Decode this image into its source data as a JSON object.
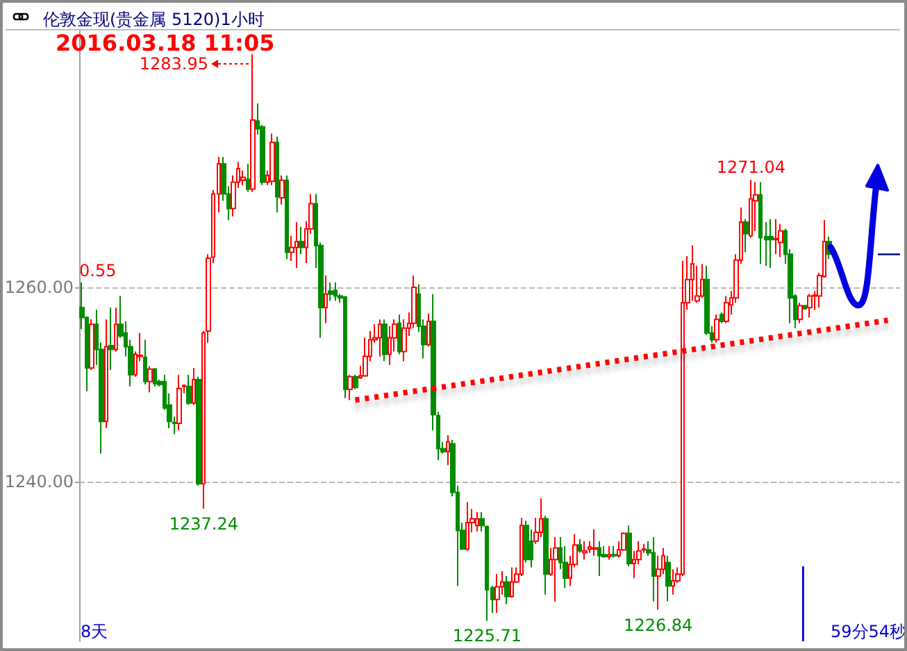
{
  "chart_data": {
    "type": "candlestick",
    "title": "伦敦金现(贵金属 5120)1小时",
    "subtitle": "2016.03.18 11:05",
    "categories": [
      null,
      null,
      null,
      null,
      null,
      null,
      null,
      null,
      null,
      null,
      null,
      null,
      null,
      null,
      null,
      null,
      null,
      null,
      null,
      null,
      null,
      null,
      null,
      null,
      null,
      null,
      null,
      null,
      null,
      null,
      null,
      null,
      null,
      null,
      null,
      null,
      null,
      null,
      null,
      null,
      null,
      null,
      null,
      null,
      null,
      null,
      null,
      null,
      null,
      null,
      null,
      null,
      null,
      null,
      null,
      null,
      null,
      null,
      null,
      null,
      null,
      null,
      null,
      null,
      null,
      null,
      null,
      null,
      null,
      null,
      null,
      null,
      null,
      null,
      null,
      null,
      null,
      null,
      null,
      null,
      null,
      null,
      null,
      null,
      null,
      null,
      null,
      null,
      null,
      null,
      null,
      null,
      null,
      null,
      null,
      null,
      null,
      null,
      null,
      null,
      null,
      null,
      null,
      null,
      null,
      null,
      null,
      null,
      null,
      null,
      null,
      null,
      null,
      null,
      null,
      null,
      null,
      null,
      null,
      null,
      null,
      null,
      null,
      null,
      null,
      null,
      null,
      null,
      null,
      null,
      null,
      null,
      null,
      null,
      null,
      null,
      null,
      null,
      null,
      null,
      null,
      null,
      null,
      null,
      null,
      null,
      null,
      null,
      null,
      null,
      null,
      null,
      null,
      null,
      null,
      null,
      null,
      null,
      null,
      null,
      null,
      null,
      null,
      null,
      null,
      null,
      null,
      null
    ],
    "colors": [
      "#008c00",
      "#008c00",
      "#ff0000",
      "#008c00",
      "#008c00",
      "#ff0000",
      "#008c00",
      "#ff0000",
      "#008c00",
      "#008c00",
      "#008c00",
      "#ff0000",
      "#ff0000",
      "#008c00",
      "#ff0000",
      "#008c00",
      "#008c00",
      "#008c00",
      "#008c00",
      "#008c00",
      "#ff0000",
      "#ff0000",
      "#008c00",
      "#ff0000",
      "#008c00",
      "#ff0000",
      "#ff0000",
      "#ff0000",
      "#ff0000",
      "#008c00",
      "#008c00",
      "#ff0000",
      "#ff0000",
      "#ff0000",
      "#008c00",
      "#ff0000",
      "#008c00",
      "#008c00",
      "#ff0000",
      "#ff0000",
      "#008c00",
      "#ff0000",
      "#008c00",
      "#ff0000",
      "#ff0000",
      "#008c00",
      "#ff0000",
      "#ff0000",
      "#008c00",
      "#008c00",
      "#ff0000",
      "#008c00",
      "#008c00",
      "#008c00",
      "#008c00",
      "#ff0000",
      "#008c00",
      "#ff0000",
      "#ff0000",
      "#ff0000",
      "#ff0000",
      "#ff0000",
      "#008c00",
      "#ff0000",
      "#ff0000",
      "#008c00",
      "#ff0000",
      "#ff0000",
      "#ff0000",
      "#008c00",
      "#008c00",
      "#ff0000",
      "#008c00",
      "#008c00",
      "#008c00",
      "#ff0000",
      "#008c00",
      "#008c00",
      "#008c00",
      "#ff0000",
      "#ff0000",
      "#ff0000",
      "#008c00",
      "#008c00",
      "#008c00",
      "#ff0000",
      "#ff0000",
      "#008c00",
      "#ff0000",
      "#ff0000",
      "#ff0000",
      "#008c00",
      "#008c00",
      "#ff0000",
      "#ff0000",
      "#008c00",
      "#ff0000",
      "#ff0000",
      "#008c00",
      "#008c00",
      "#ff0000",
      "#ff0000",
      "#008c00",
      "#ff0000",
      "#ff0000",
      "#ff0000",
      "#008c00",
      "#008c00",
      "#ff0000",
      "#008c00",
      "#ff0000",
      "#ff0000",
      "#008c00",
      "#ff0000",
      "#ff0000",
      "#ff0000",
      "#008c00",
      "#008c00",
      "#ff0000",
      "#ff0000",
      "#008c00",
      "#ff0000",
      "#ff0000",
      "#ff0000",
      "#ff0000",
      "#ff0000",
      "#ff0000",
      "#ff0000",
      "#008c00",
      "#008c00",
      "#ff0000",
      "#008c00",
      "#ff0000",
      "#ff0000",
      "#ff0000",
      "#ff0000",
      "#008c00",
      "#ff0000",
      "#ff0000",
      "#008c00",
      "#008c00",
      "#008c00",
      "#ff0000",
      "#ff0000",
      "#008c00",
      "#008c00",
      "#008c00",
      "#ff0000",
      "#008c00",
      "#ff0000",
      "#ff0000",
      "#ff0000",
      "#ff0000",
      "#008c00",
      null,
      null,
      null,
      null,
      null,
      null,
      null,
      null,
      null,
      null,
      null,
      null,
      null,
      null
    ],
    "ohlc": [
      [
        1257.9,
        1260.5,
        1255.7,
        1256.9
      ],
      [
        1256.9,
        1257.0,
        1249.3,
        1251.7
      ],
      [
        1251.7,
        1256.7,
        1251.5,
        1256.2
      ],
      [
        1256.2,
        1257.7,
        1252.0,
        1253.6
      ],
      [
        1253.6,
        1254.3,
        1242.9,
        1246.2
      ],
      [
        1246.2,
        1256.7,
        1245.5,
        1253.9
      ],
      [
        1254.0,
        1257.9,
        1251.5,
        1253.6
      ],
      [
        1253.6,
        1257.9,
        1253.4,
        1256.2
      ],
      [
        1256.2,
        1259.1,
        1254.8,
        1255.0
      ],
      [
        1255.3,
        1256.5,
        1252.9,
        1253.9
      ],
      [
        1253.9,
        1254.6,
        1249.8,
        1251.0
      ],
      [
        1251.0,
        1253.4,
        1250.8,
        1253.1
      ],
      [
        1252.9,
        1255.3,
        1252.4,
        1253.0
      ],
      [
        1252.8,
        1254.6,
        1250.0,
        1250.3
      ],
      [
        1250.3,
        1251.9,
        1249.2,
        1251.6
      ],
      [
        1251.6,
        1251.7,
        1249.8,
        1250.1
      ],
      [
        1250.3,
        1250.5,
        1249.8,
        1250.0
      ],
      [
        1250.3,
        1251.0,
        1247.4,
        1247.6
      ],
      [
        1247.9,
        1249.1,
        1245.5,
        1246.2
      ],
      [
        1246.1,
        1246.7,
        1244.9,
        1246.0
      ],
      [
        1246.0,
        1251.0,
        1245.3,
        1249.6
      ],
      [
        1249.8,
        1250.0,
        1249.1,
        1249.9
      ],
      [
        1249.8,
        1251.0,
        1247.9,
        1248.1
      ],
      [
        1248.1,
        1251.7,
        1247.9,
        1250.5
      ],
      [
        1250.5,
        1250.8,
        1239.6,
        1239.8
      ],
      [
        1239.8,
        1255.5,
        1237.24,
        1255.3
      ],
      [
        1255.5,
        1263.4,
        1254.3,
        1263.0
      ],
      [
        1263.1,
        1270.0,
        1262.5,
        1269.6
      ],
      [
        1269.6,
        1273.4,
        1267.7,
        1272.7
      ],
      [
        1272.7,
        1273.4,
        1268.9,
        1269.6
      ],
      [
        1269.6,
        1270.4,
        1266.9,
        1268.1
      ],
      [
        1268.1,
        1271.5,
        1267.3,
        1270.8
      ],
      [
        1270.8,
        1272.9,
        1270.2,
        1272.2
      ],
      [
        1271.0,
        1272.0,
        1270.5,
        1271.3
      ],
      [
        1271.1,
        1272.7,
        1269.8,
        1270.1
      ],
      [
        1270.1,
        1283.95,
        1269.8,
        1277.2
      ],
      [
        1277.1,
        1278.9,
        1275.7,
        1276.3
      ],
      [
        1276.5,
        1276.7,
        1270.5,
        1270.8
      ],
      [
        1270.8,
        1272.0,
        1270.5,
        1271.5
      ],
      [
        1270.9,
        1275.8,
        1270.5,
        1274.9
      ],
      [
        1274.9,
        1275.5,
        1267.7,
        1269.3
      ],
      [
        1269.2,
        1271.5,
        1268.5,
        1271.0
      ],
      [
        1271.0,
        1271.5,
        1262.9,
        1263.6
      ],
      [
        1263.6,
        1265.3,
        1262.7,
        1264.1
      ],
      [
        1264.1,
        1266.7,
        1262.0,
        1264.7
      ],
      [
        1264.7,
        1266.2,
        1263.4,
        1264.1
      ],
      [
        1264.1,
        1266.8,
        1262.5,
        1266.0
      ],
      [
        1266.0,
        1269.6,
        1265.5,
        1268.6
      ],
      [
        1268.6,
        1269.6,
        1262.0,
        1264.3
      ],
      [
        1264.3,
        1264.6,
        1254.8,
        1257.9
      ],
      [
        1257.9,
        1261.2,
        1256.3,
        1259.3
      ],
      [
        1259.6,
        1260.5,
        1258.6,
        1259.3
      ],
      [
        1259.7,
        1260.5,
        1258.6,
        1259.1
      ],
      [
        1259.1,
        1259.3,
        1258.4,
        1258.9
      ],
      [
        1259.0,
        1259.1,
        1248.6,
        1249.5
      ],
      [
        1249.5,
        1251.0,
        1248.4,
        1250.8
      ],
      [
        1250.8,
        1251.0,
        1249.5,
        1249.7
      ],
      [
        1250.7,
        1251.9,
        1250.6,
        1250.9
      ],
      [
        1250.9,
        1254.8,
        1250.8,
        1252.9
      ],
      [
        1252.9,
        1255.5,
        1252.4,
        1254.6
      ],
      [
        1254.6,
        1256.2,
        1254.3,
        1254.8
      ],
      [
        1254.8,
        1256.7,
        1252.9,
        1256.2
      ],
      [
        1256.2,
        1256.7,
        1252.4,
        1253.1
      ],
      [
        1253.1,
        1256.0,
        1252.0,
        1254.8
      ],
      [
        1254.8,
        1256.7,
        1253.4,
        1256.2
      ],
      [
        1256.3,
        1257.2,
        1253.1,
        1253.4
      ],
      [
        1253.4,
        1256.7,
        1252.4,
        1255.8
      ],
      [
        1255.8,
        1257.4,
        1255.0,
        1256.3
      ],
      [
        1256.3,
        1261.2,
        1255.8,
        1260.0
      ],
      [
        1259.3,
        1260.3,
        1255.4,
        1256.0
      ],
      [
        1256.0,
        1256.7,
        1252.7,
        1254.1
      ],
      [
        1254.1,
        1257.3,
        1253.9,
        1256.5
      ],
      [
        1256.5,
        1259.3,
        1245.3,
        1246.9
      ],
      [
        1246.8,
        1247.2,
        1242.2,
        1243.4
      ],
      [
        1243.4,
        1244.1,
        1242.9,
        1243.1
      ],
      [
        1243.1,
        1244.8,
        1241.7,
        1244.1
      ],
      [
        1243.9,
        1244.3,
        1238.5,
        1238.9
      ],
      [
        1238.9,
        1239.6,
        1229.3,
        1235.0
      ],
      [
        1235.0,
        1235.8,
        1233.0,
        1233.1
      ],
      [
        1233.1,
        1237.9,
        1232.9,
        1235.8
      ],
      [
        1235.8,
        1237.2,
        1234.8,
        1236.2
      ],
      [
        1235.5,
        1236.9,
        1234.9,
        1236.2
      ],
      [
        1236.2,
        1236.9,
        1234.9,
        1235.5
      ],
      [
        1235.4,
        1235.5,
        1225.71,
        1228.9
      ],
      [
        1229.1,
        1229.3,
        1226.5,
        1227.9
      ],
      [
        1227.9,
        1230.5,
        1226.5,
        1229.2
      ],
      [
        1229.2,
        1230.8,
        1228.4,
        1229.7
      ],
      [
        1229.7,
        1230.3,
        1227.4,
        1228.2
      ],
      [
        1228.2,
        1231.2,
        1228.1,
        1229.7
      ],
      [
        1229.7,
        1231.2,
        1229.6,
        1230.5
      ],
      [
        1230.5,
        1236.3,
        1230.3,
        1235.5
      ],
      [
        1235.5,
        1236.0,
        1231.7,
        1232.0
      ],
      [
        1233.9,
        1235.1,
        1231.2,
        1232.0
      ],
      [
        1233.9,
        1236.3,
        1233.6,
        1234.8
      ],
      [
        1234.8,
        1238.3,
        1234.3,
        1236.2
      ],
      [
        1236.2,
        1236.5,
        1228.4,
        1230.5
      ],
      [
        1230.5,
        1233.2,
        1230.3,
        1232.0
      ],
      [
        1232.0,
        1234.3,
        1227.7,
        1233.2
      ],
      [
        1233.2,
        1234.3,
        1231.0,
        1231.7
      ],
      [
        1231.7,
        1233.4,
        1229.1,
        1230.1
      ],
      [
        1230.1,
        1232.4,
        1229.3,
        1231.5
      ],
      [
        1231.5,
        1234.6,
        1231.2,
        1233.5
      ],
      [
        1233.5,
        1234.1,
        1232.7,
        1232.9
      ],
      [
        1232.7,
        1233.9,
        1232.0,
        1232.9
      ],
      [
        1233.1,
        1233.9,
        1232.7,
        1233.3
      ],
      [
        1233.1,
        1235.1,
        1232.4,
        1233.2
      ],
      [
        1233.2,
        1233.9,
        1230.3,
        1232.4
      ],
      [
        1232.5,
        1233.4,
        1232.2,
        1232.3
      ],
      [
        1232.3,
        1233.4,
        1232.0,
        1232.5
      ],
      [
        1232.5,
        1233.4,
        1232.2,
        1232.4
      ],
      [
        1232.4,
        1233.9,
        1232.2,
        1233.0
      ],
      [
        1233.0,
        1234.8,
        1232.9,
        1234.7
      ],
      [
        1234.7,
        1235.5,
        1231.3,
        1231.6
      ],
      [
        1231.6,
        1232.9,
        1230.1,
        1232.0
      ],
      [
        1232.0,
        1233.9,
        1231.5,
        1232.9
      ],
      [
        1233.0,
        1233.6,
        1232.7,
        1233.1
      ],
      [
        1233.0,
        1233.9,
        1232.4,
        1232.7
      ],
      [
        1232.7,
        1234.3,
        1227.7,
        1230.3
      ],
      [
        1230.3,
        1232.4,
        1226.84,
        1231.0
      ],
      [
        1231.0,
        1233.2,
        1230.5,
        1232.4
      ],
      [
        1231.7,
        1232.4,
        1227.7,
        1229.3
      ],
      [
        1229.3,
        1231.0,
        1228.4,
        1229.8
      ],
      [
        1229.8,
        1231.2,
        1229.6,
        1230.5
      ],
      [
        1230.5,
        1262.7,
        1230.3,
        1258.4
      ],
      [
        1258.4,
        1263.2,
        1257.7,
        1260.8
      ],
      [
        1260.8,
        1264.3,
        1258.6,
        1262.4
      ],
      [
        1258.6,
        1262.2,
        1258.4,
        1259.1
      ],
      [
        1259.1,
        1262.4,
        1258.9,
        1260.8
      ],
      [
        1260.8,
        1262.2,
        1255.1,
        1255.3
      ],
      [
        1255.3,
        1256.0,
        1254.3,
        1254.6
      ],
      [
        1254.6,
        1257.2,
        1254.3,
        1256.7
      ],
      [
        1257.2,
        1257.4,
        1256.3,
        1256.5
      ],
      [
        1256.5,
        1259.1,
        1256.3,
        1258.4
      ],
      [
        1258.2,
        1259.6,
        1257.2,
        1258.9
      ],
      [
        1258.9,
        1263.4,
        1258.4,
        1262.8
      ],
      [
        1262.8,
        1268.2,
        1262.4,
        1266.7
      ],
      [
        1266.7,
        1267.0,
        1263.6,
        1265.5
      ],
      [
        1265.3,
        1271.04,
        1265.1,
        1269.1
      ],
      [
        1268.9,
        1270.8,
        1265.8,
        1269.5
      ],
      [
        1269.5,
        1270.8,
        1262.4,
        1265.1
      ],
      [
        1265.2,
        1266.7,
        1262.2,
        1264.9
      ],
      [
        1265.2,
        1267.0,
        1262.0,
        1264.9
      ],
      [
        1264.9,
        1267.0,
        1263.4,
        1265.0
      ],
      [
        1264.6,
        1266.5,
        1263.1,
        1265.8
      ],
      [
        1265.8,
        1266.0,
        1262.4,
        1263.4
      ],
      [
        1263.4,
        1263.9,
        1256.3,
        1258.9
      ],
      [
        1259.1,
        1259.3,
        1255.8,
        1256.7
      ],
      [
        1256.7,
        1258.4,
        1256.3,
        1258.1
      ],
      [
        1258.1,
        1258.1,
        1257.7,
        1257.8
      ],
      [
        1257.9,
        1259.3,
        1256.9,
        1259.1
      ],
      [
        1259.1,
        1259.6,
        1257.7,
        1259.2
      ],
      [
        1259.1,
        1261.5,
        1257.9,
        1261.2
      ],
      [
        1261.1,
        1266.9,
        1261.0,
        1264.7
      ],
      [
        1264.7,
        1265.2,
        1262.9,
        1263.4
      ],
      null,
      null,
      null,
      null,
      null,
      null,
      null,
      null,
      null,
      null,
      null,
      null,
      null,
      null
    ],
    "series": [
      {
        "type": "line",
        "color": "#ff0000",
        "line_style": "dotted",
        "values": [
          null,
          null,
          null,
          null,
          null,
          null,
          null,
          null,
          null,
          null,
          null,
          null,
          null,
          null,
          null,
          null,
          null,
          null,
          null,
          null,
          null,
          null,
          null,
          null,
          null,
          null,
          null,
          null,
          null,
          null,
          null,
          null,
          null,
          null,
          null,
          null,
          null,
          null,
          null,
          null,
          null,
          null,
          null,
          null,
          null,
          null,
          null,
          null,
          null,
          null,
          null,
          null,
          null,
          null,
          null,
          null,
          1248.4,
          null,
          null,
          null,
          null,
          null,
          null,
          null,
          null,
          null,
          null,
          null,
          null,
          null,
          null,
          null,
          null,
          null,
          null,
          null,
          null,
          null,
          null,
          null,
          null,
          null,
          null,
          null,
          null,
          null,
          null,
          null,
          null,
          null,
          null,
          null,
          null,
          null,
          null,
          null,
          null,
          null,
          null,
          null,
          null,
          null,
          null,
          null,
          null,
          null,
          null,
          null,
          null,
          null,
          null,
          null,
          null,
          null,
          null,
          null,
          null,
          null,
          null,
          null,
          null,
          null,
          null,
          null,
          null,
          null,
          null,
          null,
          null,
          null,
          null,
          null,
          null,
          null,
          null,
          null,
          null,
          null,
          null,
          null,
          null,
          null,
          null,
          null,
          null,
          null,
          null,
          null,
          null,
          null,
          null,
          null,
          null,
          null,
          null,
          null,
          null,
          null,
          null,
          null,
          null,
          null,
          null,
          null,
          null,
          1256.6,
          null,
          null
        ]
      }
    ],
    "ylim": [
      1223.6,
      1286.4
    ],
    "yticks": [
      {
        "value": 1240,
        "label": "1240.00"
      },
      {
        "value": 1260,
        "label": "1260.00"
      }
    ],
    "grid": "y",
    "tick_labels": "y",
    "annotations": [
      "1283.95",
      {
        "text": "1237.24",
        "y": 1237.24
      },
      {
        "text": "1225.71",
        "y": 1225.71
      },
      {
        "text": "1226.84",
        "y": 1226.84
      },
      {
        "text": "1271.04",
        "y": 1271.04
      },
      "0.55",
      "8天",
      "59分54秒"
    ]
  }
}
